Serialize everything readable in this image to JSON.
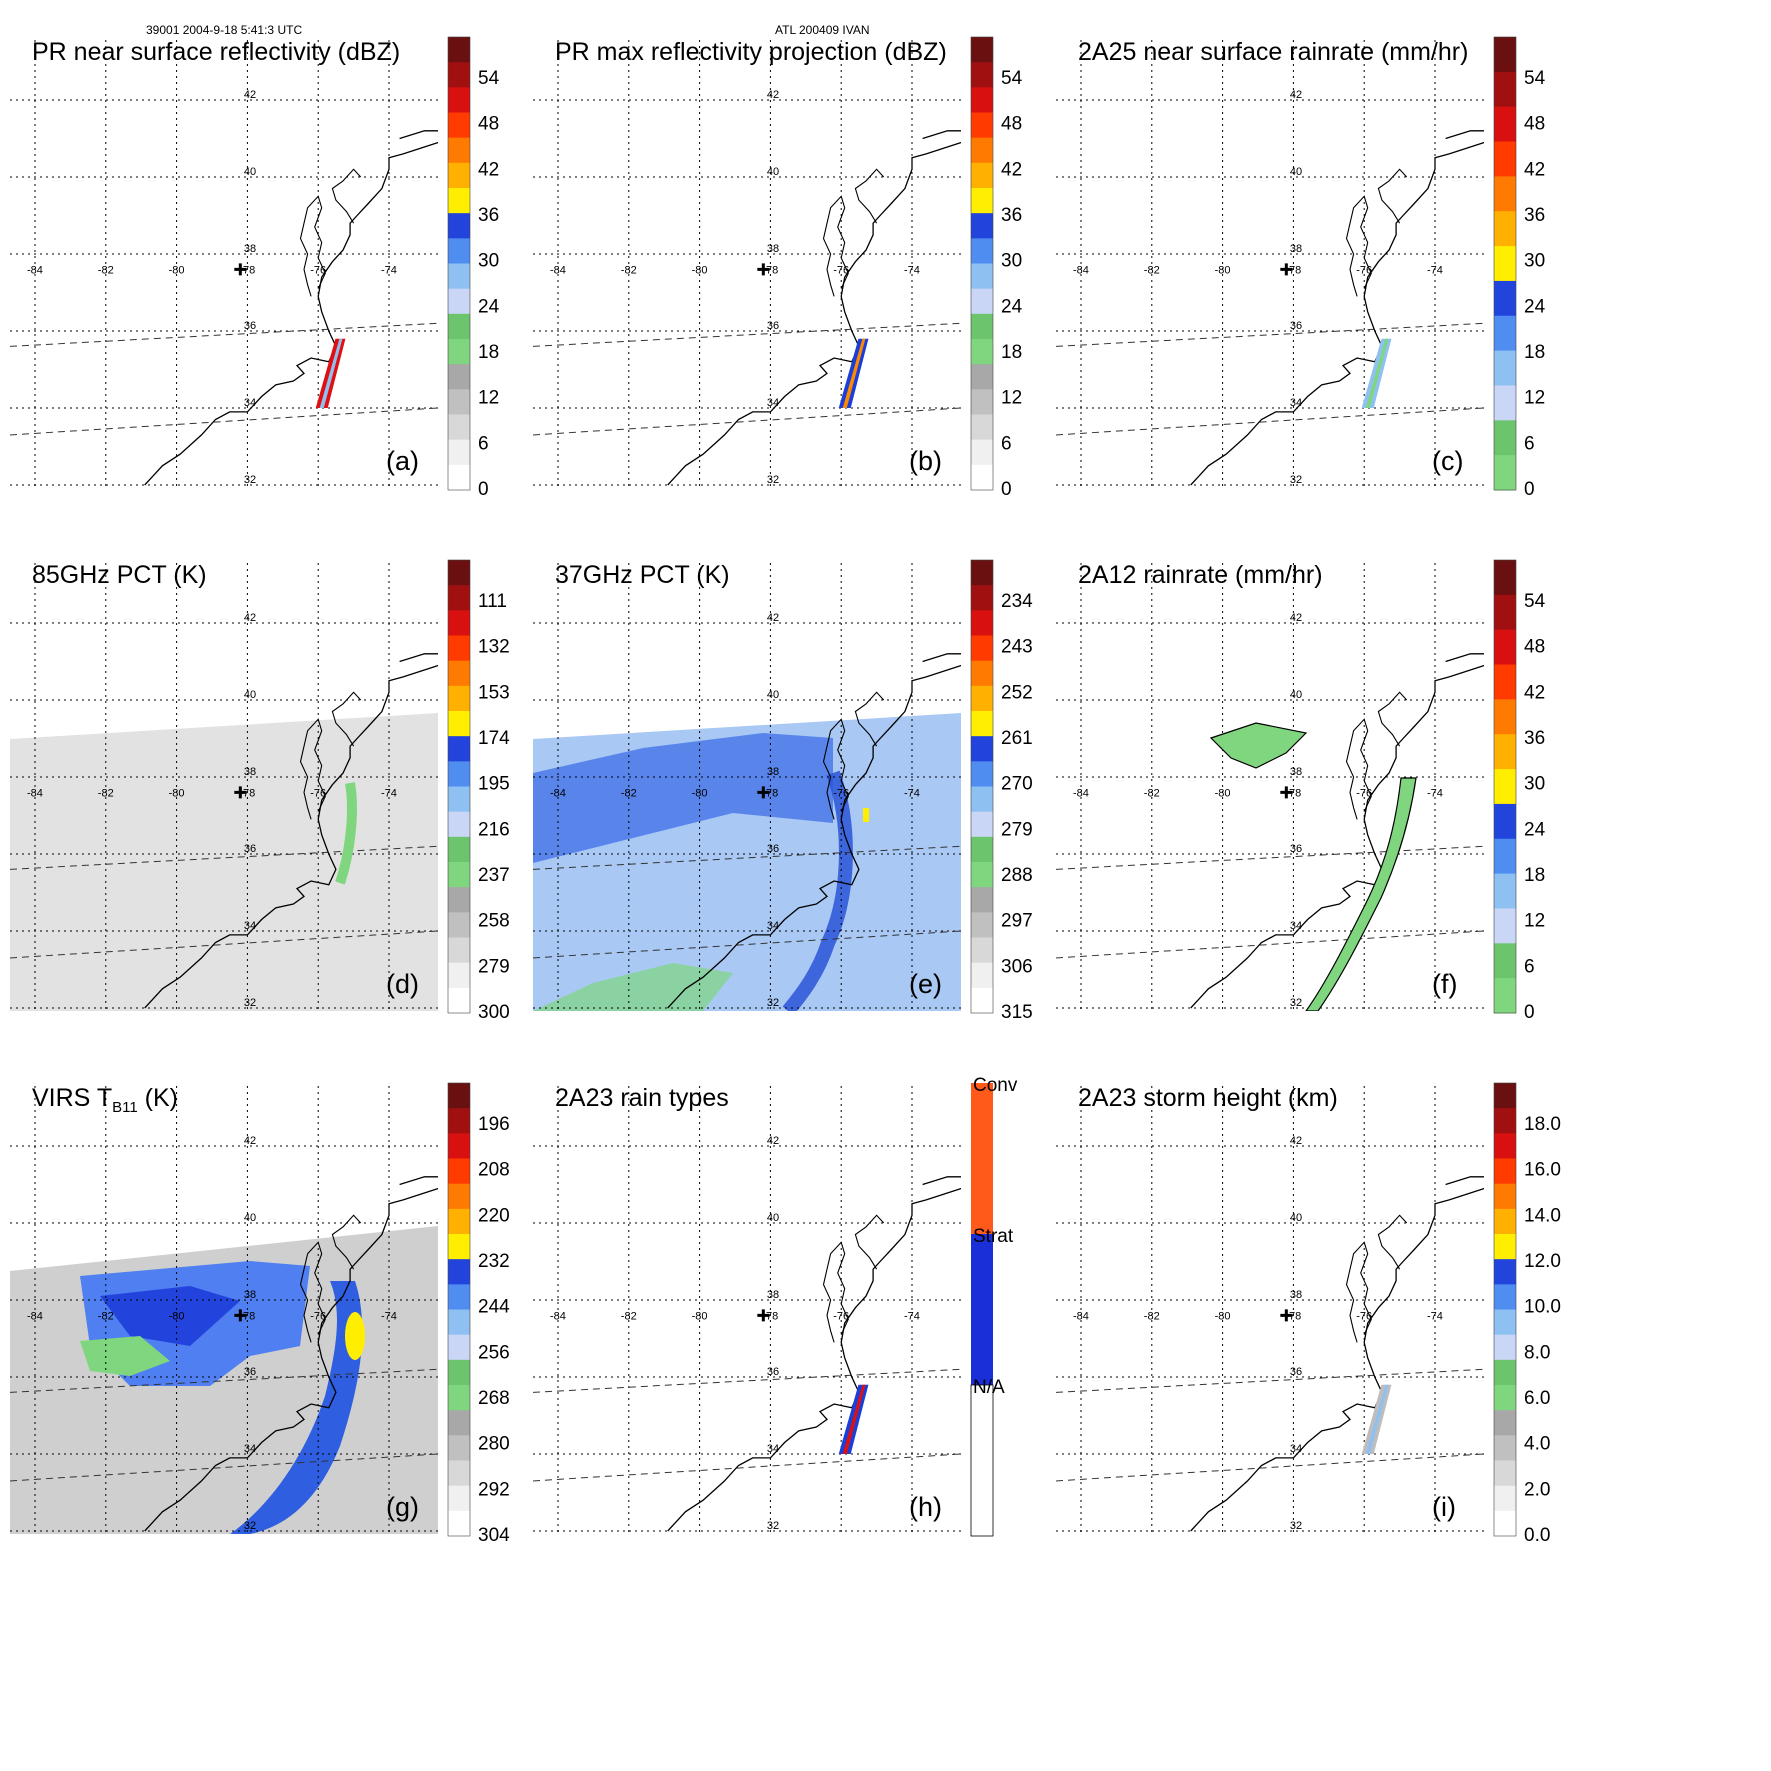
{
  "header": {
    "left": "39001 2004-9-18 5:41:3 UTC",
    "center": "ATL 200409 IVAN"
  },
  "axes": {
    "lon_labels": [
      "-84",
      "-82",
      "-80",
      "-78",
      "-76",
      "-74"
    ],
    "lat_labels": [
      "42",
      "40",
      "38",
      "36",
      "34",
      "32"
    ]
  },
  "colors": {
    "light_green": "#7fd67f",
    "gray": "#bdbdbd",
    "light_blue": "#8ec0f2",
    "blue": "#2244dd",
    "yellow": "#ffee00",
    "orange": "#ff8a00",
    "red": "#e01010",
    "dark_red": "#7a1010"
  },
  "panels": [
    {
      "id": "a",
      "title": "PR near surface reflectivity (dBZ)",
      "label": "(a)",
      "colorbar": [
        "54",
        "48",
        "42",
        "36",
        "30",
        "24",
        "18",
        "12",
        "6",
        "0"
      ]
    },
    {
      "id": "b",
      "title": "PR max reflectivity projection (dBZ)",
      "label": "(b)",
      "colorbar": [
        "54",
        "48",
        "42",
        "36",
        "30",
        "24",
        "18",
        "12",
        "6",
        "0"
      ]
    },
    {
      "id": "c",
      "title": "2A25 near surface rainrate (mm/hr)",
      "label": "(c)",
      "colorbar": [
        "54",
        "48",
        "42",
        "36",
        "30",
        "24",
        "18",
        "12",
        "6",
        "0"
      ]
    },
    {
      "id": "d",
      "title": "85GHz PCT (K)",
      "label": "(d)",
      "colorbar": [
        "111",
        "132",
        "153",
        "174",
        "195",
        "216",
        "237",
        "258",
        "279",
        "300"
      ]
    },
    {
      "id": "e",
      "title": "37GHz PCT (K)",
      "label": "(e)",
      "colorbar": [
        "234",
        "243",
        "252",
        "261",
        "270",
        "279",
        "288",
        "297",
        "306",
        "315"
      ]
    },
    {
      "id": "f",
      "title": "2A12 rainrate (mm/hr)",
      "label": "(f)",
      "colorbar": [
        "54",
        "48",
        "42",
        "36",
        "30",
        "24",
        "18",
        "12",
        "6",
        "0"
      ]
    },
    {
      "id": "g",
      "title": "VIRS T",
      "title_sub": "B11",
      "title_suffix": " (K)",
      "label": "(g)",
      "colorbar": [
        "196",
        "208",
        "220",
        "232",
        "244",
        "256",
        "268",
        "280",
        "292",
        "304"
      ]
    },
    {
      "id": "h",
      "title": "2A23 rain types",
      "label": "(h)",
      "colorbar": [
        "Conv",
        "Strat",
        "N/A"
      ]
    },
    {
      "id": "i",
      "title": "2A23 storm height (km)",
      "label": "(i)",
      "colorbar": [
        "18.0",
        "16.0",
        "14.0",
        "12.0",
        "10.0",
        "8.0",
        "6.0",
        "4.0",
        "2.0",
        "0.0"
      ]
    }
  ]
}
